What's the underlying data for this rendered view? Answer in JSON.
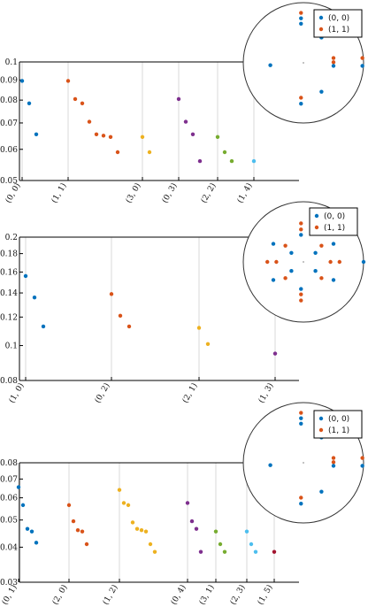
{
  "colors": {
    "c0": "#0072BD",
    "c1": "#D95319",
    "c2": "#EDB120",
    "c3": "#7E2F8E",
    "c4": "#77AC30",
    "c5": "#4DBEEE",
    "c6": "#A2142F",
    "axis": "#000000",
    "grid": "#d9d9d9"
  },
  "chart_data": [
    {
      "type": "scatter",
      "yscale": "log",
      "ylim": [
        0.05,
        0.1
      ],
      "yticks": [
        {
          "value": 0.1,
          "label": "0.1"
        },
        {
          "value": 0.09,
          "label": "0.09"
        },
        {
          "value": 0.08,
          "label": "0.08"
        },
        {
          "value": 0.07,
          "label": "0.07"
        },
        {
          "value": 0.06,
          "label": "0.06"
        },
        {
          "value": 0.05,
          "label": "0.05"
        }
      ],
      "groups": [
        {
          "label": "(0, 0)",
          "color": "c0",
          "values": [
            0.0895,
            0.0785,
            0.0655
          ]
        },
        {
          "label": "(1, 1)",
          "color": "c1",
          "values": [
            0.0895,
            0.0805,
            0.0785,
            0.0705,
            0.0655,
            0.065,
            0.0645,
            0.059
          ]
        },
        {
          "label": "(3, 0)",
          "color": "c2",
          "values": [
            0.0645,
            0.059
          ]
        },
        {
          "label": "(0, 3)",
          "color": "c3",
          "values": [
            0.0805,
            0.0705,
            0.0655,
            0.056
          ]
        },
        {
          "label": "(2, 2)",
          "color": "c4",
          "values": [
            0.0645,
            0.059,
            0.056
          ]
        },
        {
          "label": "(1, 4)",
          "color": "c5",
          "values": [
            0.056
          ]
        }
      ],
      "inset": {
        "legend": [
          {
            "label": "(0, 0)",
            "color": "c0"
          },
          {
            "label": "(1, 1)",
            "color": "c1"
          }
        ],
        "points": [
          {
            "color": "c0",
            "x": -0.04,
            "y": 0.74
          },
          {
            "color": "c0",
            "x": -0.04,
            "y": 0.65
          },
          {
            "color": "c1",
            "x": -0.04,
            "y": 0.83
          },
          {
            "color": "c0",
            "x": 0.3,
            "y": 0.42
          },
          {
            "color": "c0",
            "x": -0.55,
            "y": -0.04
          },
          {
            "color": "c1",
            "x": 0.5,
            "y": 0.08
          },
          {
            "color": "c1",
            "x": 0.5,
            "y": 0.01
          },
          {
            "color": "c0",
            "x": 0.5,
            "y": -0.05
          },
          {
            "color": "c1",
            "x": 0.98,
            "y": 0.08
          },
          {
            "color": "c0",
            "x": 0.98,
            "y": -0.05
          },
          {
            "color": "c0",
            "x": 0.3,
            "y": -0.48
          },
          {
            "color": "c1",
            "x": -0.04,
            "y": -0.58
          },
          {
            "color": "c0",
            "x": -0.04,
            "y": -0.68
          }
        ]
      }
    },
    {
      "type": "scatter",
      "yscale": "log",
      "ylim": [
        0.08,
        0.2
      ],
      "yticks": [
        {
          "value": 0.2,
          "label": "0.2"
        },
        {
          "value": 0.18,
          "label": "0.18"
        },
        {
          "value": 0.16,
          "label": "0.16"
        },
        {
          "value": 0.14,
          "label": "0.14"
        },
        {
          "value": 0.12,
          "label": "0.12"
        },
        {
          "value": 0.1,
          "label": "0.1"
        },
        {
          "value": 0.08,
          "label": "0.08"
        }
      ],
      "groups": [
        {
          "label": "(1, 0)",
          "color": "c0",
          "values": [
            0.156,
            0.136,
            0.113
          ]
        },
        {
          "label": "(0, 2)",
          "color": "c1",
          "values": [
            0.139,
            0.121,
            0.113
          ]
        },
        {
          "label": "(2, 1)",
          "color": "c2",
          "values": [
            0.112,
            0.101
          ]
        },
        {
          "label": "(1, 3)",
          "color": "c3",
          "values": [
            0.095
          ]
        }
      ],
      "inset": {
        "legend": [
          {
            "label": "(0, 0)",
            "color": "c0"
          },
          {
            "label": "(1, 1)",
            "color": "c1"
          }
        ],
        "points": [
          {
            "color": "c0",
            "x": 1.0,
            "y": 0.0
          },
          {
            "color": "c1",
            "x": -0.04,
            "y": 0.64
          },
          {
            "color": "c1",
            "x": -0.04,
            "y": 0.54
          },
          {
            "color": "c0",
            "x": -0.04,
            "y": 0.45
          },
          {
            "color": "c1",
            "x": -0.3,
            "y": 0.27
          },
          {
            "color": "c1",
            "x": 0.3,
            "y": 0.27
          },
          {
            "color": "c0",
            "x": -0.5,
            "y": 0.3
          },
          {
            "color": "c0",
            "x": 0.5,
            "y": 0.3
          },
          {
            "color": "c0",
            "x": -0.2,
            "y": 0.15
          },
          {
            "color": "c0",
            "x": 0.2,
            "y": 0.15
          },
          {
            "color": "c1",
            "x": -0.6,
            "y": 0.0
          },
          {
            "color": "c1",
            "x": -0.45,
            "y": 0.0
          },
          {
            "color": "c1",
            "x": 0.45,
            "y": 0.0
          },
          {
            "color": "c1",
            "x": 0.6,
            "y": 0.0
          },
          {
            "color": "c0",
            "x": -0.2,
            "y": -0.15
          },
          {
            "color": "c0",
            "x": 0.2,
            "y": -0.15
          },
          {
            "color": "c0",
            "x": -0.5,
            "y": -0.3
          },
          {
            "color": "c0",
            "x": 0.5,
            "y": -0.3
          },
          {
            "color": "c1",
            "x": -0.3,
            "y": -0.27
          },
          {
            "color": "c1",
            "x": 0.3,
            "y": -0.27
          },
          {
            "color": "c0",
            "x": -0.04,
            "y": -0.45
          },
          {
            "color": "c1",
            "x": -0.04,
            "y": -0.54
          },
          {
            "color": "c1",
            "x": -0.04,
            "y": -0.64
          }
        ]
      }
    },
    {
      "type": "scatter",
      "yscale": "log",
      "ylim": [
        0.03,
        0.08
      ],
      "yticks": [
        {
          "value": 0.08,
          "label": "0.08"
        },
        {
          "value": 0.07,
          "label": "0.07"
        },
        {
          "value": 0.06,
          "label": "0.06"
        },
        {
          "value": 0.05,
          "label": "0.05"
        },
        {
          "value": 0.04,
          "label": "0.04"
        },
        {
          "value": 0.03,
          "label": "0.03"
        }
      ],
      "groups": [
        {
          "label": "(0, 1)",
          "color": "c0",
          "values": [
            0.0655,
            0.0565,
            0.0465,
            0.0455,
            0.0415
          ]
        },
        {
          "label": "(2, 0)",
          "color": "c1",
          "values": [
            0.0565,
            0.0495,
            0.046,
            0.0455,
            0.041
          ]
        },
        {
          "label": "(1, 2)",
          "color": "c2",
          "values": [
            0.064,
            0.0575,
            0.0565,
            0.049,
            0.0465,
            0.046,
            0.0455,
            0.041,
            0.0385
          ]
        },
        {
          "label": "(0, 4)",
          "color": "c3",
          "values": [
            0.0575,
            0.0495,
            0.0465,
            0.0385
          ]
        },
        {
          "label": "(3, 1)",
          "color": "c4",
          "values": [
            0.0455,
            0.041,
            0.0385
          ]
        },
        {
          "label": "(2, 3)",
          "color": "c5",
          "values": [
            0.0455,
            0.041,
            0.0385
          ]
        },
        {
          "label": "(1, 5)",
          "color": "c6",
          "values": [
            0.0385
          ]
        }
      ],
      "inset": {
        "legend": [
          {
            "label": "(0, 0)",
            "color": "c0"
          },
          {
            "label": "(1, 1)",
            "color": "c1"
          }
        ],
        "points": [
          {
            "color": "c0",
            "x": -0.04,
            "y": 0.74
          },
          {
            "color": "c0",
            "x": -0.04,
            "y": 0.65
          },
          {
            "color": "c1",
            "x": -0.04,
            "y": 0.83
          },
          {
            "color": "c0",
            "x": 0.3,
            "y": 0.42
          },
          {
            "color": "c0",
            "x": -0.55,
            "y": -0.04
          },
          {
            "color": "c1",
            "x": 0.5,
            "y": 0.08
          },
          {
            "color": "c1",
            "x": 0.5,
            "y": 0.01
          },
          {
            "color": "c0",
            "x": 0.5,
            "y": -0.05
          },
          {
            "color": "c1",
            "x": 0.98,
            "y": 0.08
          },
          {
            "color": "c0",
            "x": 0.98,
            "y": -0.05
          },
          {
            "color": "c0",
            "x": 0.3,
            "y": -0.48
          },
          {
            "color": "c1",
            "x": -0.04,
            "y": -0.58
          },
          {
            "color": "c0",
            "x": -0.04,
            "y": -0.68
          }
        ]
      }
    }
  ]
}
